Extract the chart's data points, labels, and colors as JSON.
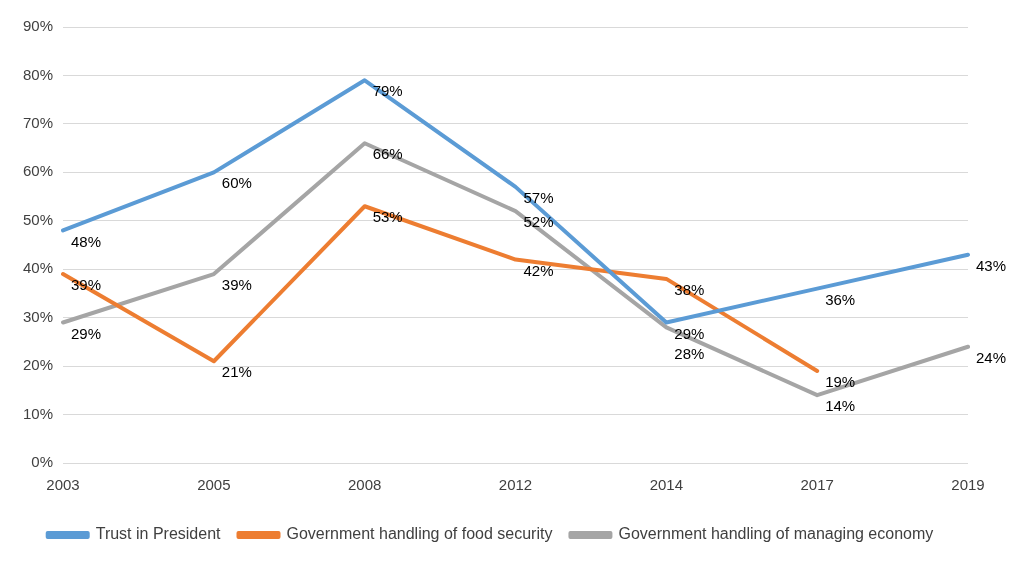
{
  "chart_data": {
    "type": "line",
    "categories": [
      "2003",
      "2005",
      "2008",
      "2012",
      "2014",
      "2017",
      "2019"
    ],
    "ylim": [
      0,
      90
    ],
    "yticks": [
      {
        "value": 0,
        "label": "0%"
      },
      {
        "value": 10,
        "label": "10%"
      },
      {
        "value": 20,
        "label": "20%"
      },
      {
        "value": 30,
        "label": "30%"
      },
      {
        "value": 40,
        "label": "40%"
      },
      {
        "value": 50,
        "label": "50%"
      },
      {
        "value": 60,
        "label": "60%"
      },
      {
        "value": 70,
        "label": "70%"
      },
      {
        "value": 80,
        "label": "80%"
      },
      {
        "value": 90,
        "label": "90%"
      }
    ],
    "grid": "y",
    "legend": "bottom",
    "marker": "none",
    "line_style": "solid",
    "series": [
      {
        "name": "Trust in President",
        "color": "#5b9bd5",
        "values": [
          48,
          60,
          79,
          57,
          29,
          36,
          43
        ],
        "value_labels": [
          "48%",
          "60%",
          "79%",
          "57%",
          "29%",
          "36%",
          "43%"
        ]
      },
      {
        "name": "Government handling of food security",
        "color": "#ed7d31",
        "values": [
          39,
          21,
          53,
          42,
          38,
          19,
          null
        ],
        "value_labels": [
          "39%",
          "21%",
          "53%",
          "42%",
          "38%",
          "19%",
          null
        ]
      },
      {
        "name": "Government handling of managing economy",
        "color": "#a5a5a5",
        "values": [
          29,
          39,
          66,
          52,
          28,
          14,
          24
        ],
        "value_labels": [
          "29%",
          "39%",
          "66%",
          "52%",
          "28%",
          "14%",
          "24%"
        ]
      }
    ]
  }
}
